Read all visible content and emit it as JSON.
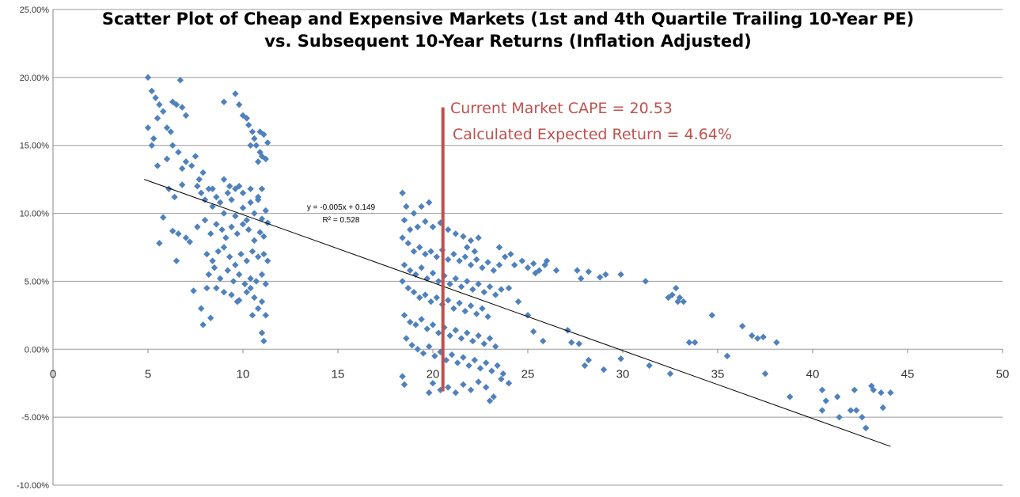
{
  "chart_data": {
    "type": "scatter",
    "title_line1": "Scatter Plot of Cheap and Expensive Markets (1st and 4th Quartile Trailing 10-Year PE)",
    "title_line2": "vs. Subsequent 10-Year Returns (Inflation Adjusted)",
    "xlim": [
      0,
      50
    ],
    "ylim": [
      -0.1,
      0.25
    ],
    "x_ticks": [
      "0",
      "5",
      "10",
      "15",
      "20",
      "25",
      "30",
      "35",
      "40",
      "45",
      "50"
    ],
    "y_ticks": [
      "-10.00%",
      "-5.00%",
      "0.00%",
      "5.00%",
      "10.00%",
      "15.00%",
      "20.00%",
      "25.00%"
    ],
    "grid": "horizontal",
    "colors": {
      "points": "#4f81bd",
      "trendline": "#000000",
      "marker_line": "#c0504d",
      "annotation": "#c0504d"
    },
    "trendline": {
      "slope": -0.005,
      "intercept": 0.149,
      "x_range": [
        4.8,
        44.1
      ]
    },
    "equation": "y = -0.005x + 0.149",
    "r_squared": "R² = 0.528",
    "current_cape": {
      "x": 20.53,
      "y_range": [
        -0.031,
        0.178
      ]
    },
    "annotation_line1": "Current  Market CAPE = 20.53",
    "annotation_line2": "Calculated Expected Return = 4.64%",
    "points": [
      [
        5.0,
        0.2
      ],
      [
        5.2,
        0.19
      ],
      [
        5.4,
        0.185
      ],
      [
        5.6,
        0.18
      ],
      [
        5.0,
        0.163
      ],
      [
        5.3,
        0.155
      ],
      [
        5.5,
        0.17
      ],
      [
        5.8,
        0.175
      ],
      [
        6.0,
        0.163
      ],
      [
        6.3,
        0.182
      ],
      [
        6.5,
        0.18
      ],
      [
        6.7,
        0.198
      ],
      [
        6.2,
        0.16
      ],
      [
        6.8,
        0.178
      ],
      [
        7.0,
        0.172
      ],
      [
        5.2,
        0.15
      ],
      [
        5.5,
        0.135
      ],
      [
        6.0,
        0.14
      ],
      [
        6.3,
        0.15
      ],
      [
        6.6,
        0.145
      ],
      [
        6.8,
        0.133
      ],
      [
        7.0,
        0.138
      ],
      [
        7.3,
        0.135
      ],
      [
        7.5,
        0.142
      ],
      [
        6.1,
        0.118
      ],
      [
        6.4,
        0.112
      ],
      [
        6.8,
        0.121
      ],
      [
        5.8,
        0.097
      ],
      [
        5.6,
        0.078
      ],
      [
        6.3,
        0.087
      ],
      [
        6.6,
        0.085
      ],
      [
        7.0,
        0.082
      ],
      [
        6.5,
        0.065
      ],
      [
        7.2,
        0.079
      ],
      [
        7.6,
        0.09
      ],
      [
        7.4,
        0.043
      ],
      [
        7.8,
        0.03
      ],
      [
        7.9,
        0.018
      ],
      [
        8.1,
        0.045
      ],
      [
        8.3,
        0.023
      ],
      [
        7.6,
        0.12
      ],
      [
        7.8,
        0.115
      ],
      [
        8.0,
        0.11
      ],
      [
        8.2,
        0.118
      ],
      [
        8.4,
        0.105
      ],
      [
        8.6,
        0.112
      ],
      [
        8.8,
        0.108
      ],
      [
        9.0,
        0.1
      ],
      [
        9.2,
        0.115
      ],
      [
        9.4,
        0.11
      ],
      [
        9.6,
        0.098
      ],
      [
        9.8,
        0.12
      ],
      [
        10.0,
        0.104
      ],
      [
        10.2,
        0.095
      ],
      [
        10.4,
        0.108
      ],
      [
        10.6,
        0.1
      ],
      [
        10.8,
        0.11
      ],
      [
        11.0,
        0.096
      ],
      [
        11.2,
        0.102
      ],
      [
        11.3,
        0.093
      ],
      [
        8.0,
        0.095
      ],
      [
        8.3,
        0.085
      ],
      [
        8.6,
        0.092
      ],
      [
        8.9,
        0.088
      ],
      [
        9.1,
        0.082
      ],
      [
        9.4,
        0.09
      ],
      [
        9.7,
        0.085
      ],
      [
        10.0,
        0.092
      ],
      [
        10.3,
        0.088
      ],
      [
        10.6,
        0.08
      ],
      [
        10.9,
        0.086
      ],
      [
        11.1,
        0.083
      ],
      [
        8.1,
        0.07
      ],
      [
        8.4,
        0.065
      ],
      [
        8.7,
        0.072
      ],
      [
        9.0,
        0.075
      ],
      [
        9.3,
        0.068
      ],
      [
        9.6,
        0.062
      ],
      [
        9.9,
        0.07
      ],
      [
        10.2,
        0.065
      ],
      [
        10.5,
        0.072
      ],
      [
        10.8,
        0.068
      ],
      [
        11.1,
        0.07
      ],
      [
        11.3,
        0.065
      ],
      [
        8.2,
        0.055
      ],
      [
        8.5,
        0.06
      ],
      [
        8.8,
        0.052
      ],
      [
        9.2,
        0.058
      ],
      [
        9.5,
        0.05
      ],
      [
        9.8,
        0.055
      ],
      [
        10.1,
        0.048
      ],
      [
        10.4,
        0.052
      ],
      [
        10.7,
        0.05
      ],
      [
        11.0,
        0.055
      ],
      [
        11.2,
        0.048
      ],
      [
        8.6,
        0.045
      ],
      [
        9.0,
        0.042
      ],
      [
        9.4,
        0.04
      ],
      [
        9.8,
        0.036
      ],
      [
        10.2,
        0.042
      ],
      [
        10.6,
        0.038
      ],
      [
        11.0,
        0.035
      ],
      [
        10.8,
        0.03
      ],
      [
        10.5,
        0.025
      ],
      [
        11.2,
        0.025
      ],
      [
        11.0,
        0.012
      ],
      [
        11.1,
        0.006
      ],
      [
        10.4,
        0.045
      ],
      [
        9.7,
        0.035
      ],
      [
        9.0,
        0.125
      ],
      [
        9.3,
        0.12
      ],
      [
        9.6,
        0.118
      ],
      [
        10.0,
        0.115
      ],
      [
        10.4,
        0.118
      ],
      [
        10.8,
        0.112
      ],
      [
        11.0,
        0.118
      ],
      [
        8.4,
        0.118
      ],
      [
        7.7,
        0.125
      ],
      [
        7.9,
        0.13
      ],
      [
        9.0,
        0.182
      ],
      [
        9.6,
        0.188
      ],
      [
        9.8,
        0.18
      ],
      [
        10.0,
        0.172
      ],
      [
        10.2,
        0.17
      ],
      [
        10.3,
        0.165
      ],
      [
        10.5,
        0.16
      ],
      [
        10.6,
        0.155
      ],
      [
        10.9,
        0.16
      ],
      [
        11.1,
        0.158
      ],
      [
        11.3,
        0.152
      ],
      [
        10.7,
        0.15
      ],
      [
        10.9,
        0.145
      ],
      [
        11.2,
        0.14
      ],
      [
        10.4,
        0.15
      ],
      [
        10.8,
        0.138
      ],
      [
        11.0,
        0.142
      ],
      [
        18.4,
        0.115
      ],
      [
        18.6,
        0.105
      ],
      [
        19.0,
        0.1
      ],
      [
        19.4,
        0.105
      ],
      [
        19.8,
        0.108
      ],
      [
        18.5,
        0.095
      ],
      [
        18.8,
        0.088
      ],
      [
        19.2,
        0.09
      ],
      [
        19.6,
        0.094
      ],
      [
        20.0,
        0.09
      ],
      [
        20.4,
        0.093
      ],
      [
        20.8,
        0.088
      ],
      [
        21.2,
        0.085
      ],
      [
        21.6,
        0.083
      ],
      [
        22.0,
        0.08
      ],
      [
        22.4,
        0.082
      ],
      [
        18.4,
        0.082
      ],
      [
        18.7,
        0.078
      ],
      [
        19.0,
        0.072
      ],
      [
        19.3,
        0.075
      ],
      [
        19.6,
        0.07
      ],
      [
        19.9,
        0.072
      ],
      [
        20.2,
        0.068
      ],
      [
        20.5,
        0.073
      ],
      [
        20.8,
        0.066
      ],
      [
        21.1,
        0.07
      ],
      [
        21.4,
        0.065
      ],
      [
        21.7,
        0.068
      ],
      [
        22.0,
        0.062
      ],
      [
        22.3,
        0.066
      ],
      [
        22.6,
        0.06
      ],
      [
        22.9,
        0.064
      ],
      [
        23.2,
        0.058
      ],
      [
        23.5,
        0.062
      ],
      [
        23.8,
        0.068
      ],
      [
        24.1,
        0.07
      ],
      [
        18.5,
        0.062
      ],
      [
        18.8,
        0.058
      ],
      [
        19.1,
        0.055
      ],
      [
        19.4,
        0.06
      ],
      [
        19.7,
        0.052
      ],
      [
        20.0,
        0.056
      ],
      [
        20.3,
        0.05
      ],
      [
        20.6,
        0.054
      ],
      [
        20.9,
        0.048
      ],
      [
        21.2,
        0.052
      ],
      [
        21.5,
        0.046
      ],
      [
        21.8,
        0.05
      ],
      [
        22.1,
        0.044
      ],
      [
        22.4,
        0.048
      ],
      [
        22.7,
        0.042
      ],
      [
        23.0,
        0.046
      ],
      [
        23.3,
        0.04
      ],
      [
        23.6,
        0.044
      ],
      [
        18.4,
        0.05
      ],
      [
        18.7,
        0.045
      ],
      [
        19.0,
        0.042
      ],
      [
        19.3,
        0.038
      ],
      [
        19.6,
        0.04
      ],
      [
        19.9,
        0.035
      ],
      [
        20.2,
        0.038
      ],
      [
        20.5,
        0.033
      ],
      [
        20.8,
        0.036
      ],
      [
        21.1,
        0.03
      ],
      [
        21.4,
        0.034
      ],
      [
        21.7,
        0.028
      ],
      [
        22.0,
        0.032
      ],
      [
        22.3,
        0.026
      ],
      [
        22.6,
        0.03
      ],
      [
        22.9,
        0.024
      ],
      [
        18.5,
        0.025
      ],
      [
        18.8,
        0.02
      ],
      [
        19.1,
        0.018
      ],
      [
        19.4,
        0.022
      ],
      [
        19.7,
        0.015
      ],
      [
        20.0,
        0.018
      ],
      [
        20.3,
        0.012
      ],
      [
        20.6,
        0.016
      ],
      [
        20.9,
        0.01
      ],
      [
        21.2,
        0.014
      ],
      [
        21.5,
        0.008
      ],
      [
        21.8,
        0.012
      ],
      [
        22.1,
        0.006
      ],
      [
        22.4,
        0.01
      ],
      [
        22.7,
        0.004
      ],
      [
        23.0,
        0.008
      ],
      [
        23.3,
        0.002
      ],
      [
        18.6,
        0.008
      ],
      [
        18.9,
        0.003
      ],
      [
        19.2,
        0.0
      ],
      [
        19.5,
        -0.003
      ],
      [
        19.8,
        0.002
      ],
      [
        20.1,
        -0.005
      ],
      [
        20.4,
        -0.002
      ],
      [
        20.7,
        -0.008
      ],
      [
        21.0,
        -0.004
      ],
      [
        21.3,
        -0.01
      ],
      [
        21.6,
        -0.006
      ],
      [
        21.9,
        -0.012
      ],
      [
        22.2,
        -0.008
      ],
      [
        22.5,
        -0.014
      ],
      [
        22.8,
        -0.01
      ],
      [
        23.1,
        -0.016
      ],
      [
        23.4,
        -0.012
      ],
      [
        23.7,
        -0.018
      ],
      [
        20.0,
        -0.025
      ],
      [
        20.4,
        -0.03
      ],
      [
        20.8,
        -0.028
      ],
      [
        21.2,
        -0.032
      ],
      [
        21.6,
        -0.026
      ],
      [
        22.0,
        -0.03
      ],
      [
        22.4,
        -0.024
      ],
      [
        22.8,
        -0.028
      ],
      [
        23.2,
        -0.035
      ],
      [
        23.0,
        -0.038
      ],
      [
        23.6,
        -0.022
      ],
      [
        24.0,
        -0.025
      ],
      [
        18.4,
        -0.02
      ],
      [
        18.5,
        -0.026
      ],
      [
        19.8,
        -0.032
      ],
      [
        21.8,
        0.075
      ],
      [
        22.2,
        0.072
      ],
      [
        23.5,
        0.075
      ],
      [
        24.3,
        0.062
      ],
      [
        24.7,
        0.065
      ],
      [
        25.0,
        0.06
      ],
      [
        25.3,
        0.063
      ],
      [
        25.6,
        0.058
      ],
      [
        25.9,
        0.062
      ],
      [
        25.4,
        0.056
      ],
      [
        26.0,
        0.065
      ],
      [
        26.5,
        0.058
      ],
      [
        27.6,
        0.058
      ],
      [
        27.8,
        0.052
      ],
      [
        28.2,
        0.057
      ],
      [
        28.8,
        0.053
      ],
      [
        29.1,
        0.055
      ],
      [
        29.9,
        0.055
      ],
      [
        31.2,
        0.05
      ],
      [
        32.4,
        0.038
      ],
      [
        32.6,
        0.04
      ],
      [
        32.8,
        0.045
      ],
      [
        32.9,
        0.035
      ],
      [
        33.0,
        0.038
      ],
      [
        33.2,
        0.035
      ],
      [
        33.5,
        0.005
      ],
      [
        33.8,
        0.005
      ],
      [
        34.7,
        0.025
      ],
      [
        35.5,
        -0.005
      ],
      [
        36.3,
        0.017
      ],
      [
        36.8,
        0.01
      ],
      [
        37.1,
        0.008
      ],
      [
        37.4,
        0.009
      ],
      [
        38.1,
        0.005
      ],
      [
        24.0,
        0.045
      ],
      [
        24.5,
        0.035
      ],
      [
        25.0,
        0.025
      ],
      [
        25.3,
        0.013
      ],
      [
        25.8,
        0.006
      ],
      [
        27.1,
        0.014
      ],
      [
        27.3,
        0.005
      ],
      [
        27.7,
        0.004
      ],
      [
        28.0,
        -0.012
      ],
      [
        28.2,
        -0.008
      ],
      [
        29.0,
        -0.015
      ],
      [
        29.9,
        -0.007
      ],
      [
        31.4,
        -0.012
      ],
      [
        32.5,
        -0.018
      ],
      [
        37.5,
        -0.018
      ],
      [
        38.8,
        -0.035
      ],
      [
        40.5,
        -0.03
      ],
      [
        40.5,
        -0.045
      ],
      [
        40.7,
        -0.038
      ],
      [
        41.3,
        -0.035
      ],
      [
        41.4,
        -0.05
      ],
      [
        42.0,
        -0.045
      ],
      [
        42.2,
        -0.03
      ],
      [
        42.3,
        -0.045
      ],
      [
        42.6,
        -0.05
      ],
      [
        42.8,
        -0.058
      ],
      [
        43.1,
        -0.027
      ],
      [
        43.2,
        -0.03
      ],
      [
        43.6,
        -0.032
      ],
      [
        43.7,
        -0.043
      ],
      [
        44.1,
        -0.032
      ]
    ]
  }
}
